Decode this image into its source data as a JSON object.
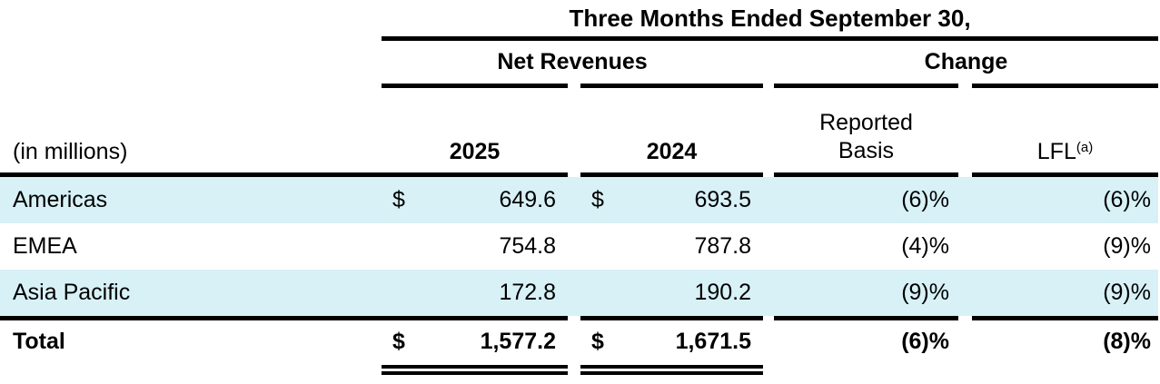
{
  "table": {
    "title": "Three Months Ended September 30,",
    "group_headers": {
      "net_revenues": "Net Revenues",
      "change": "Change"
    },
    "unit_label": "(in millions)",
    "columns": {
      "year_2025": "2025",
      "year_2024": "2024",
      "reported_line1": "Reported",
      "reported_line2": "Basis",
      "lfl": "LFL",
      "lfl_footnote": "(a)"
    },
    "rows": [
      {
        "label": "Americas",
        "cur_2025": "$",
        "val_2025": "649.6",
        "cur_2024": "$",
        "val_2024": "693.5",
        "reported": "(6)%",
        "lfl": "(6)%"
      },
      {
        "label": "EMEA",
        "cur_2025": "",
        "val_2025": "754.8",
        "cur_2024": "",
        "val_2024": "787.8",
        "reported": "(4)%",
        "lfl": "(9)%"
      },
      {
        "label": "Asia Pacific",
        "cur_2025": "",
        "val_2025": "172.8",
        "cur_2024": "",
        "val_2024": "190.2",
        "reported": "(9)%",
        "lfl": "(9)%"
      }
    ],
    "total": {
      "label": "Total",
      "cur_2025": "$",
      "val_2025": "1,577.2",
      "cur_2024": "$",
      "val_2024": "1,671.5",
      "reported": "(6)%",
      "lfl": "(8)%"
    },
    "colors": {
      "row_highlight": "#d7f1f7",
      "text": "#000000",
      "rule": "#000000"
    }
  }
}
